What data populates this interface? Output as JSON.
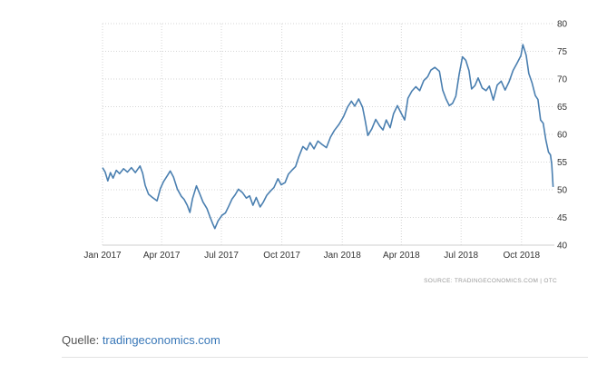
{
  "chart_data": {
    "type": "line",
    "title": "",
    "xlabel": "",
    "ylabel": "",
    "x_ticks": [
      "Jan 2017",
      "Apr 2017",
      "Jul 2017",
      "Oct 2017",
      "Jan 2018",
      "Apr 2018",
      "Jul 2018",
      "Oct 2018"
    ],
    "y_ticks": [
      "40",
      "45",
      "50",
      "55",
      "60",
      "65",
      "70",
      "75",
      "80"
    ],
    "ylim": [
      40,
      80
    ],
    "xlim": [
      "2017-01-01",
      "2018-11-20"
    ],
    "y_axis_position": "right",
    "grid": true,
    "line_color": "#4a7fb0",
    "series": [
      {
        "points": [
          [
            "2017-01-01",
            54.0
          ],
          [
            "2017-01-05",
            53.2
          ],
          [
            "2017-01-09",
            51.6
          ],
          [
            "2017-01-13",
            53.1
          ],
          [
            "2017-01-17",
            52.1
          ],
          [
            "2017-01-22",
            53.5
          ],
          [
            "2017-01-27",
            52.9
          ],
          [
            "2017-02-02",
            53.8
          ],
          [
            "2017-02-08",
            53.2
          ],
          [
            "2017-02-14",
            54.0
          ],
          [
            "2017-02-20",
            53.1
          ],
          [
            "2017-02-27",
            54.3
          ],
          [
            "2017-03-03",
            53.0
          ],
          [
            "2017-03-07",
            50.8
          ],
          [
            "2017-03-12",
            49.2
          ],
          [
            "2017-03-18",
            48.6
          ],
          [
            "2017-03-25",
            48.0
          ],
          [
            "2017-03-30",
            50.2
          ],
          [
            "2017-04-04",
            51.5
          ],
          [
            "2017-04-10",
            52.6
          ],
          [
            "2017-04-14",
            53.4
          ],
          [
            "2017-04-19",
            52.3
          ],
          [
            "2017-04-25",
            50.1
          ],
          [
            "2017-05-01",
            48.8
          ],
          [
            "2017-05-05",
            48.3
          ],
          [
            "2017-05-10",
            47.2
          ],
          [
            "2017-05-14",
            45.9
          ],
          [
            "2017-05-18",
            48.4
          ],
          [
            "2017-05-24",
            50.7
          ],
          [
            "2017-05-29",
            49.3
          ],
          [
            "2017-06-03",
            47.8
          ],
          [
            "2017-06-09",
            46.6
          ],
          [
            "2017-06-14",
            45.0
          ],
          [
            "2017-06-18",
            43.8
          ],
          [
            "2017-06-21",
            43.0
          ],
          [
            "2017-06-26",
            44.4
          ],
          [
            "2017-07-02",
            45.4
          ],
          [
            "2017-07-07",
            45.8
          ],
          [
            "2017-07-12",
            47.0
          ],
          [
            "2017-07-17",
            48.3
          ],
          [
            "2017-07-22",
            49.1
          ],
          [
            "2017-07-27",
            50.1
          ],
          [
            "2017-08-02",
            49.5
          ],
          [
            "2017-08-08",
            48.5
          ],
          [
            "2017-08-13",
            48.9
          ],
          [
            "2017-08-18",
            47.2
          ],
          [
            "2017-08-23",
            48.6
          ],
          [
            "2017-08-29",
            46.9
          ],
          [
            "2017-09-03",
            47.8
          ],
          [
            "2017-09-08",
            49.0
          ],
          [
            "2017-09-14",
            49.8
          ],
          [
            "2017-09-19",
            50.4
          ],
          [
            "2017-09-25",
            52.0
          ],
          [
            "2017-09-30",
            50.9
          ],
          [
            "2017-10-06",
            51.3
          ],
          [
            "2017-10-11",
            52.8
          ],
          [
            "2017-10-17",
            53.6
          ],
          [
            "2017-10-22",
            54.2
          ],
          [
            "2017-10-27",
            56.0
          ],
          [
            "2017-11-02",
            57.8
          ],
          [
            "2017-11-08",
            57.2
          ],
          [
            "2017-11-13",
            58.5
          ],
          [
            "2017-11-19",
            57.4
          ],
          [
            "2017-11-25",
            58.8
          ],
          [
            "2017-12-01",
            58.2
          ],
          [
            "2017-12-08",
            57.6
          ],
          [
            "2017-12-14",
            59.5
          ],
          [
            "2017-12-20",
            60.7
          ],
          [
            "2017-12-27",
            61.8
          ],
          [
            "2018-01-03",
            63.2
          ],
          [
            "2018-01-09",
            64.9
          ],
          [
            "2018-01-15",
            66.0
          ],
          [
            "2018-01-20",
            65.1
          ],
          [
            "2018-01-26",
            66.4
          ],
          [
            "2018-02-01",
            64.9
          ],
          [
            "2018-02-05",
            62.5
          ],
          [
            "2018-02-09",
            59.8
          ],
          [
            "2018-02-15",
            61.0
          ],
          [
            "2018-02-21",
            62.7
          ],
          [
            "2018-02-27",
            61.5
          ],
          [
            "2018-03-04",
            60.8
          ],
          [
            "2018-03-09",
            62.6
          ],
          [
            "2018-03-15",
            61.2
          ],
          [
            "2018-03-20",
            63.7
          ],
          [
            "2018-03-26",
            65.2
          ],
          [
            "2018-03-31",
            64.0
          ],
          [
            "2018-04-06",
            62.6
          ],
          [
            "2018-04-11",
            66.5
          ],
          [
            "2018-04-17",
            67.8
          ],
          [
            "2018-04-23",
            68.6
          ],
          [
            "2018-04-29",
            67.9
          ],
          [
            "2018-05-05",
            69.7
          ],
          [
            "2018-05-11",
            70.4
          ],
          [
            "2018-05-16",
            71.6
          ],
          [
            "2018-05-22",
            72.1
          ],
          [
            "2018-05-29",
            71.4
          ],
          [
            "2018-06-03",
            68.0
          ],
          [
            "2018-06-08",
            66.4
          ],
          [
            "2018-06-13",
            65.2
          ],
          [
            "2018-06-18",
            65.6
          ],
          [
            "2018-06-23",
            66.9
          ],
          [
            "2018-06-28",
            70.8
          ],
          [
            "2018-07-03",
            74.0
          ],
          [
            "2018-07-08",
            73.4
          ],
          [
            "2018-07-13",
            71.5
          ],
          [
            "2018-07-17",
            68.2
          ],
          [
            "2018-07-22",
            68.8
          ],
          [
            "2018-07-27",
            70.2
          ],
          [
            "2018-08-02",
            68.4
          ],
          [
            "2018-08-08",
            67.9
          ],
          [
            "2018-08-13",
            68.7
          ],
          [
            "2018-08-19",
            66.2
          ],
          [
            "2018-08-25",
            68.9
          ],
          [
            "2018-08-31",
            69.6
          ],
          [
            "2018-09-06",
            68.0
          ],
          [
            "2018-09-12",
            69.5
          ],
          [
            "2018-09-18",
            71.5
          ],
          [
            "2018-09-24",
            72.8
          ],
          [
            "2018-09-30",
            74.2
          ],
          [
            "2018-10-03",
            76.2
          ],
          [
            "2018-10-08",
            74.3
          ],
          [
            "2018-10-12",
            71.0
          ],
          [
            "2018-10-17",
            69.3
          ],
          [
            "2018-10-22",
            67.0
          ],
          [
            "2018-10-26",
            66.3
          ],
          [
            "2018-10-30",
            62.6
          ],
          [
            "2018-11-03",
            62.0
          ],
          [
            "2018-11-07",
            59.0
          ],
          [
            "2018-11-11",
            56.8
          ],
          [
            "2018-11-14",
            56.3
          ],
          [
            "2018-11-16",
            54.6
          ],
          [
            "2018-11-18",
            50.5
          ]
        ]
      }
    ]
  },
  "source_note": "SOURCE: TRADINGECONOMICS.COM  |  OTC",
  "caption": {
    "prefix": "Quelle: ",
    "link_text": "tradingeconomics.com"
  }
}
